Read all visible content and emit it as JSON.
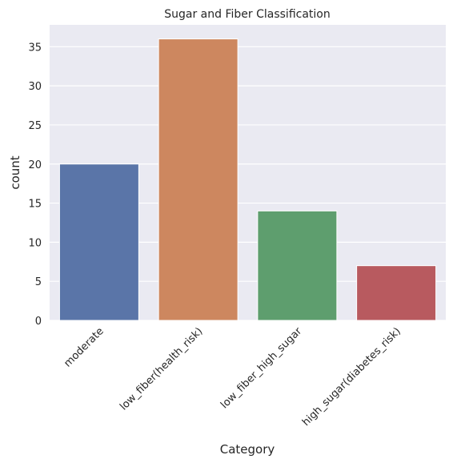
{
  "chart_data": {
    "type": "bar",
    "title": "Sugar and Fiber Classification",
    "xlabel": "Category",
    "ylabel": "count",
    "categories": [
      "moderate",
      "low_fiber(health_risk)",
      "low_fiber_high_sugar",
      "high_sugar(diabetes_risk)"
    ],
    "values": [
      20,
      36,
      14,
      7
    ],
    "colors": [
      "#5a75a8",
      "#cd875f",
      "#5e9e6e",
      "#b85a5f"
    ],
    "ylim": [
      0,
      37.8
    ],
    "yticks": [
      0,
      5,
      10,
      15,
      20,
      25,
      30,
      35
    ],
    "grid": true,
    "background": "#eaeaf2"
  }
}
